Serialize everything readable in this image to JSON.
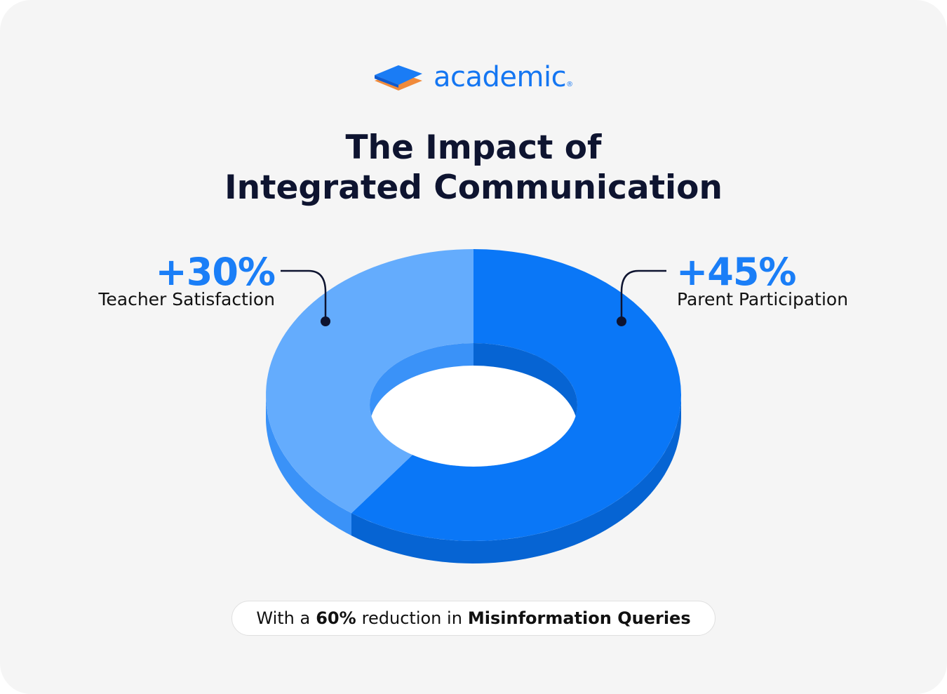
{
  "logo": {
    "text": "academic",
    "mark": "®"
  },
  "chart_data": {
    "type": "pie",
    "title": [
      "The Impact of",
      "Integrated Communication"
    ],
    "categories": [
      "Parent Participation",
      "Teacher Satisfaction"
    ],
    "values": [
      45,
      30
    ],
    "value_labels": [
      "+45%",
      "+30%"
    ],
    "colors": [
      "#0a77f7",
      "#64acfd"
    ],
    "side_colors": [
      "#0664d3",
      "#3a92f8"
    ],
    "donut": true
  },
  "note": {
    "prefix": "With a",
    "number": "60%",
    "middle": "reduction in",
    "emphasis": "Misinformation Queries"
  }
}
